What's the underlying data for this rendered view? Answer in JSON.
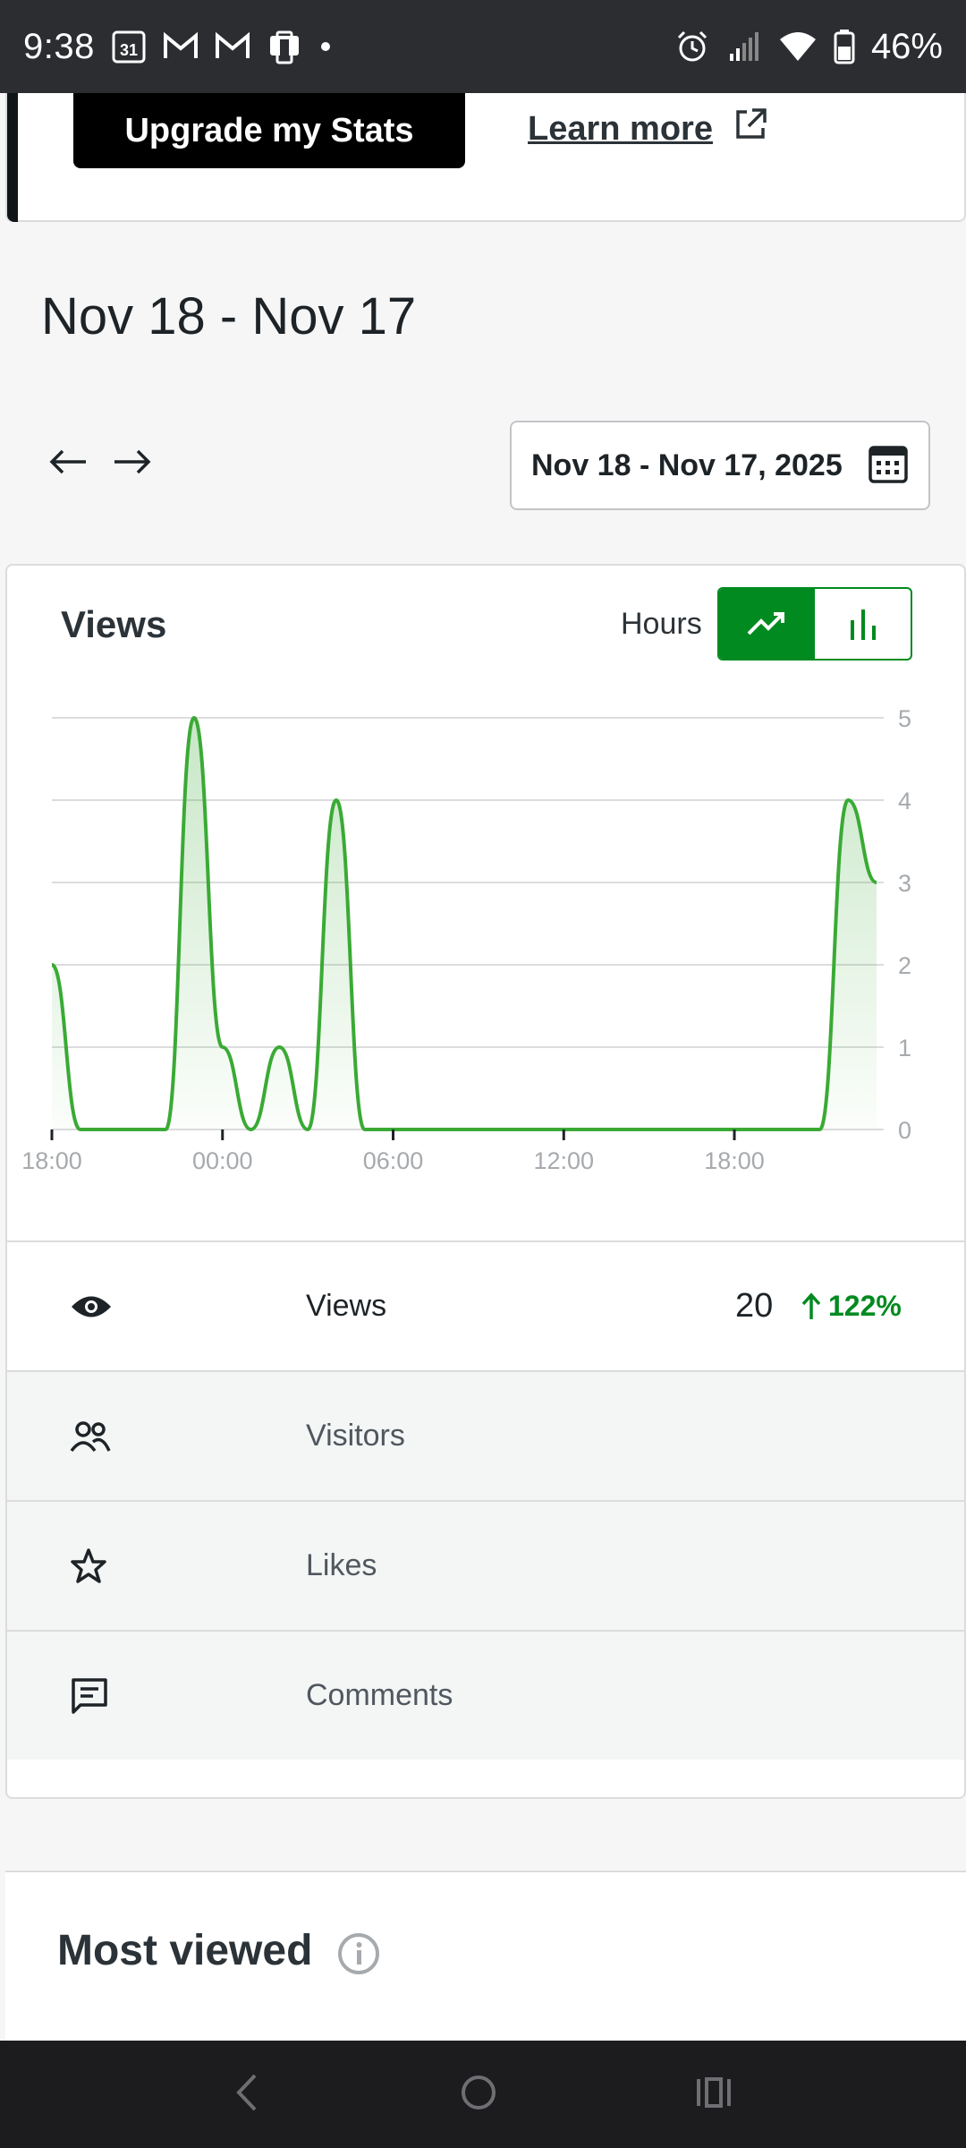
{
  "status": {
    "time": "9:38",
    "calendar_day": "31",
    "battery": "46%"
  },
  "upgrade": {
    "button_label": "Upgrade my Stats",
    "learn_more": "Learn more"
  },
  "header": {
    "date_range_title": "Nov 18 - Nov 17",
    "date_picker_value": "Nov 18 - Nov 17, 2025"
  },
  "chart_section": {
    "title": "Views",
    "granularity": "Hours",
    "active_view": "line"
  },
  "chart_data": {
    "type": "area",
    "x": [
      "18:00",
      "19:00",
      "20:00",
      "21:00",
      "22:00",
      "23:00",
      "00:00",
      "01:00",
      "02:00",
      "03:00",
      "04:00",
      "05:00",
      "06:00",
      "07:00",
      "08:00",
      "09:00",
      "10:00",
      "11:00",
      "12:00",
      "13:00",
      "14:00",
      "15:00",
      "16:00",
      "17:00",
      "18:00",
      "19:00",
      "20:00",
      "21:00",
      "22:00",
      "23:00"
    ],
    "values": [
      2,
      0,
      0,
      0,
      0,
      5,
      1,
      0,
      1,
      0,
      4,
      0,
      0,
      0,
      0,
      0,
      0,
      0,
      0,
      0,
      0,
      0,
      0,
      0,
      0,
      0,
      0,
      0,
      4,
      3
    ],
    "x_tick_labels": [
      "18:00",
      "00:00",
      "06:00",
      "12:00",
      "18:00"
    ],
    "y_ticks": [
      "0",
      "1",
      "2",
      "3",
      "4",
      "5"
    ],
    "ylim": [
      0,
      5
    ],
    "grid": true,
    "color": "#3aaa35"
  },
  "metrics": [
    {
      "label": "Views",
      "value": "20",
      "change": "122%",
      "icon": "eye-icon"
    },
    {
      "label": "Visitors",
      "icon": "people-icon"
    },
    {
      "label": "Likes",
      "icon": "star-icon"
    },
    {
      "label": "Comments",
      "icon": "comment-icon"
    }
  ],
  "most_viewed": {
    "title": "Most viewed"
  },
  "colors": {
    "accent": "#008a20",
    "chart_line": "#3aaa35"
  }
}
